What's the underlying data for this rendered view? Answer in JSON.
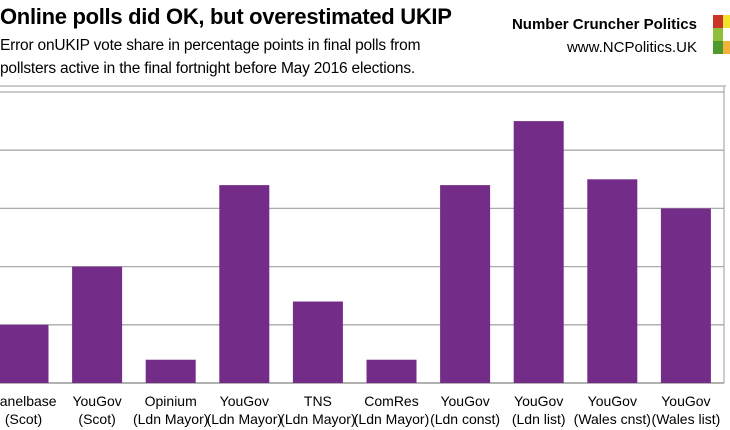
{
  "header": {
    "title": "Online polls did OK, but overestimated UKIP",
    "subtitle_line1": "Error onUKIP vote share in percentage points in final polls from",
    "subtitle_line2": "pollsters active in the final fortnight before May 2016 elections.",
    "brand": "Number Cruncher Politics",
    "url": "www.NCPolitics.UK",
    "logo_colors": [
      "#c9342a",
      "#f3e12b",
      "#8fbf3a",
      "#4e9a2a",
      "#f0b43c"
    ]
  },
  "chart_data": {
    "type": "bar",
    "title": "Online polls did OK, but overestimated UKIP",
    "categories": [
      [
        "Panelbase",
        "(Scot)"
      ],
      [
        "YouGov",
        "(Scot)"
      ],
      [
        "Opinium",
        "(Ldn Mayor)"
      ],
      [
        "YouGov",
        "(Ldn Mayor)"
      ],
      [
        "TNS",
        "(Ldn Mayor)"
      ],
      [
        "ComRes",
        "(Ldn Mayor)"
      ],
      [
        "YouGov",
        "(Ldn const)"
      ],
      [
        "YouGov",
        "(Ldn list)"
      ],
      [
        "YouGov",
        "(Wales cnst)"
      ],
      [
        "YouGov",
        "(Wales list)"
      ]
    ],
    "values": [
      1.0,
      2.0,
      0.4,
      3.4,
      1.4,
      0.4,
      3.4,
      4.5,
      3.5,
      3.0
    ],
    "ylim": [
      0,
      5.15
    ],
    "gridlines": [
      0,
      1,
      2,
      3,
      4,
      5
    ],
    "grid": true,
    "bar_color": "#732c88",
    "xlabel": "",
    "ylabel": ""
  }
}
